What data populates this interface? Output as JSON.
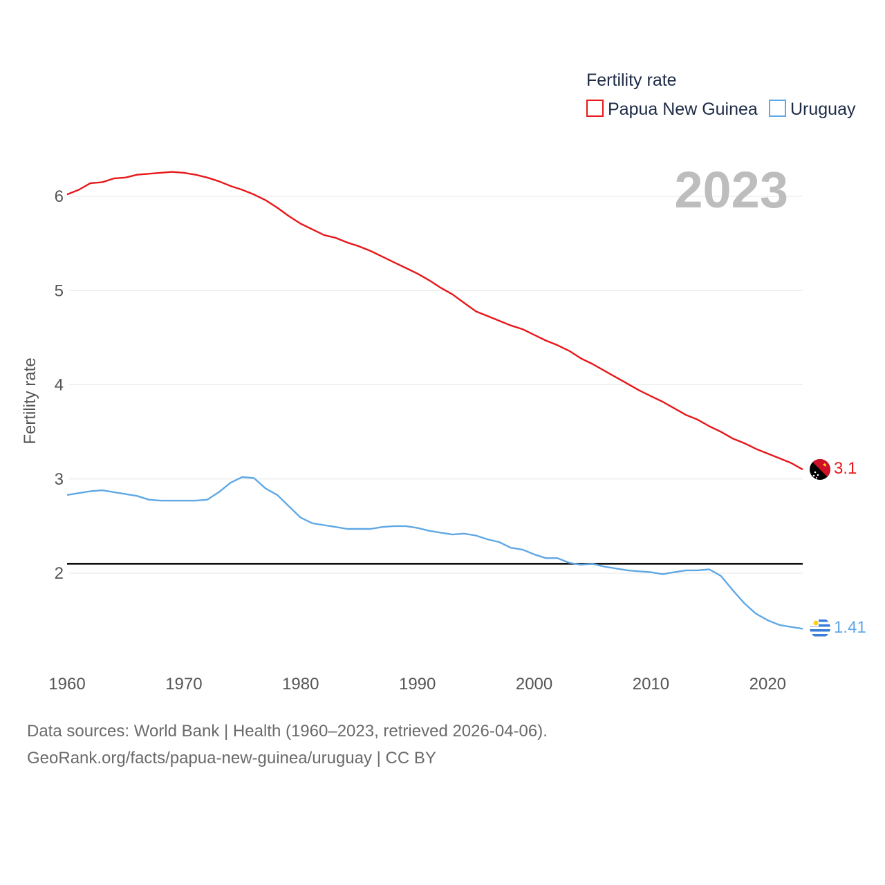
{
  "chart_data": {
    "type": "line",
    "legend_title": "Fertility rate",
    "ylabel": "Fertility rate",
    "year_label": "2023",
    "xlim": [
      1960,
      2023
    ],
    "ylim": [
      1.0,
      6.9
    ],
    "reference_line": 2.1,
    "x_ticks": [
      1960,
      1970,
      1980,
      1990,
      2000,
      2010,
      2020
    ],
    "y_ticks": [
      2,
      3,
      4,
      5,
      6
    ],
    "x": [
      1960,
      1961,
      1962,
      1963,
      1964,
      1965,
      1966,
      1967,
      1968,
      1969,
      1970,
      1971,
      1972,
      1973,
      1974,
      1975,
      1976,
      1977,
      1978,
      1979,
      1980,
      1981,
      1982,
      1983,
      1984,
      1985,
      1986,
      1987,
      1988,
      1989,
      1990,
      1991,
      1992,
      1993,
      1994,
      1995,
      1996,
      1997,
      1998,
      1999,
      2000,
      2001,
      2002,
      2003,
      2004,
      2005,
      2006,
      2007,
      2008,
      2009,
      2010,
      2011,
      2012,
      2013,
      2014,
      2015,
      2016,
      2017,
      2018,
      2019,
      2020,
      2021,
      2022,
      2023
    ],
    "series": [
      {
        "name": "Papua New Guinea",
        "color": "#e8171a",
        "end_label": "3.1",
        "values": [
          6.02,
          6.07,
          6.14,
          6.15,
          6.19,
          6.2,
          6.23,
          6.24,
          6.25,
          6.26,
          6.25,
          6.23,
          6.2,
          6.16,
          6.11,
          6.07,
          6.02,
          5.96,
          5.88,
          5.79,
          5.71,
          5.65,
          5.59,
          5.56,
          5.51,
          5.47,
          5.42,
          5.36,
          5.3,
          5.24,
          5.18,
          5.11,
          5.03,
          4.96,
          4.87,
          4.78,
          4.73,
          4.68,
          4.63,
          4.59,
          4.53,
          4.47,
          4.42,
          4.36,
          4.28,
          4.22,
          4.15,
          4.08,
          4.01,
          3.94,
          3.88,
          3.82,
          3.75,
          3.68,
          3.63,
          3.56,
          3.5,
          3.43,
          3.38,
          3.32,
          3.27,
          3.22,
          3.17,
          3.1
        ]
      },
      {
        "name": "Uruguay",
        "color": "#5fa8e6",
        "end_label": "1.41",
        "values": [
          2.83,
          2.85,
          2.87,
          2.88,
          2.86,
          2.84,
          2.82,
          2.78,
          2.77,
          2.77,
          2.77,
          2.77,
          2.78,
          2.86,
          2.96,
          3.02,
          3.01,
          2.9,
          2.83,
          2.71,
          2.59,
          2.53,
          2.51,
          2.49,
          2.47,
          2.47,
          2.47,
          2.49,
          2.5,
          2.5,
          2.48,
          2.45,
          2.43,
          2.41,
          2.42,
          2.4,
          2.36,
          2.33,
          2.27,
          2.25,
          2.2,
          2.16,
          2.16,
          2.11,
          2.09,
          2.1,
          2.07,
          2.05,
          2.03,
          2.02,
          2.01,
          1.99,
          2.01,
          2.03,
          2.03,
          2.04,
          1.97,
          1.82,
          1.68,
          1.57,
          1.5,
          1.45,
          1.43,
          1.41
        ]
      }
    ]
  },
  "footer": {
    "line1": "Data sources: World Bank | Health (1960–2023, retrieved 2026-04-06).",
    "line2": "GeoRank.org/facts/papua-new-guinea/uruguay | CC BY"
  }
}
